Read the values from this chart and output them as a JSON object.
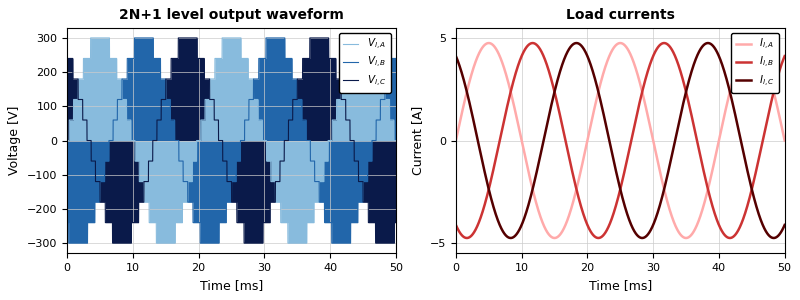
{
  "title_left": "2N+1 level output waveform",
  "title_right": "Load currents",
  "xlabel": "Time [ms]",
  "ylabel_left": "Voltage [V]",
  "ylabel_right": "Current [A]",
  "xlim": [
    0,
    50
  ],
  "ylim_left": [
    -330,
    330
  ],
  "ylim_right": [
    -5.5,
    5.5
  ],
  "yticks_left": [
    -300,
    -200,
    -100,
    0,
    100,
    200,
    300
  ],
  "yticks_right": [
    -5,
    0,
    5
  ],
  "freq": 50,
  "amplitude_v": 300,
  "amplitude_i": 4.75,
  "n_levels": 5,
  "colors_v": [
    "#88bbdd",
    "#2266aa",
    "#0a1a4a"
  ],
  "colors_i": [
    "#ffaaaa",
    "#cc3333",
    "#550000"
  ],
  "legend_labels_v": [
    "$V_{l,A}$",
    "$V_{l,B}$",
    "$V_{l,C}$"
  ],
  "legend_labels_i": [
    "$I_{l,A}$",
    "$I_{l,B}$",
    "$I_{l,C}$"
  ],
  "phase_shifts_v": [
    0,
    2.0943951,
    4.1887902
  ],
  "phase_shifts_i": [
    0,
    2.0943951,
    4.1887902
  ],
  "xticks": [
    0,
    10,
    20,
    30,
    40,
    50
  ],
  "linewidth_v": 12,
  "linewidth_i": 1.8
}
